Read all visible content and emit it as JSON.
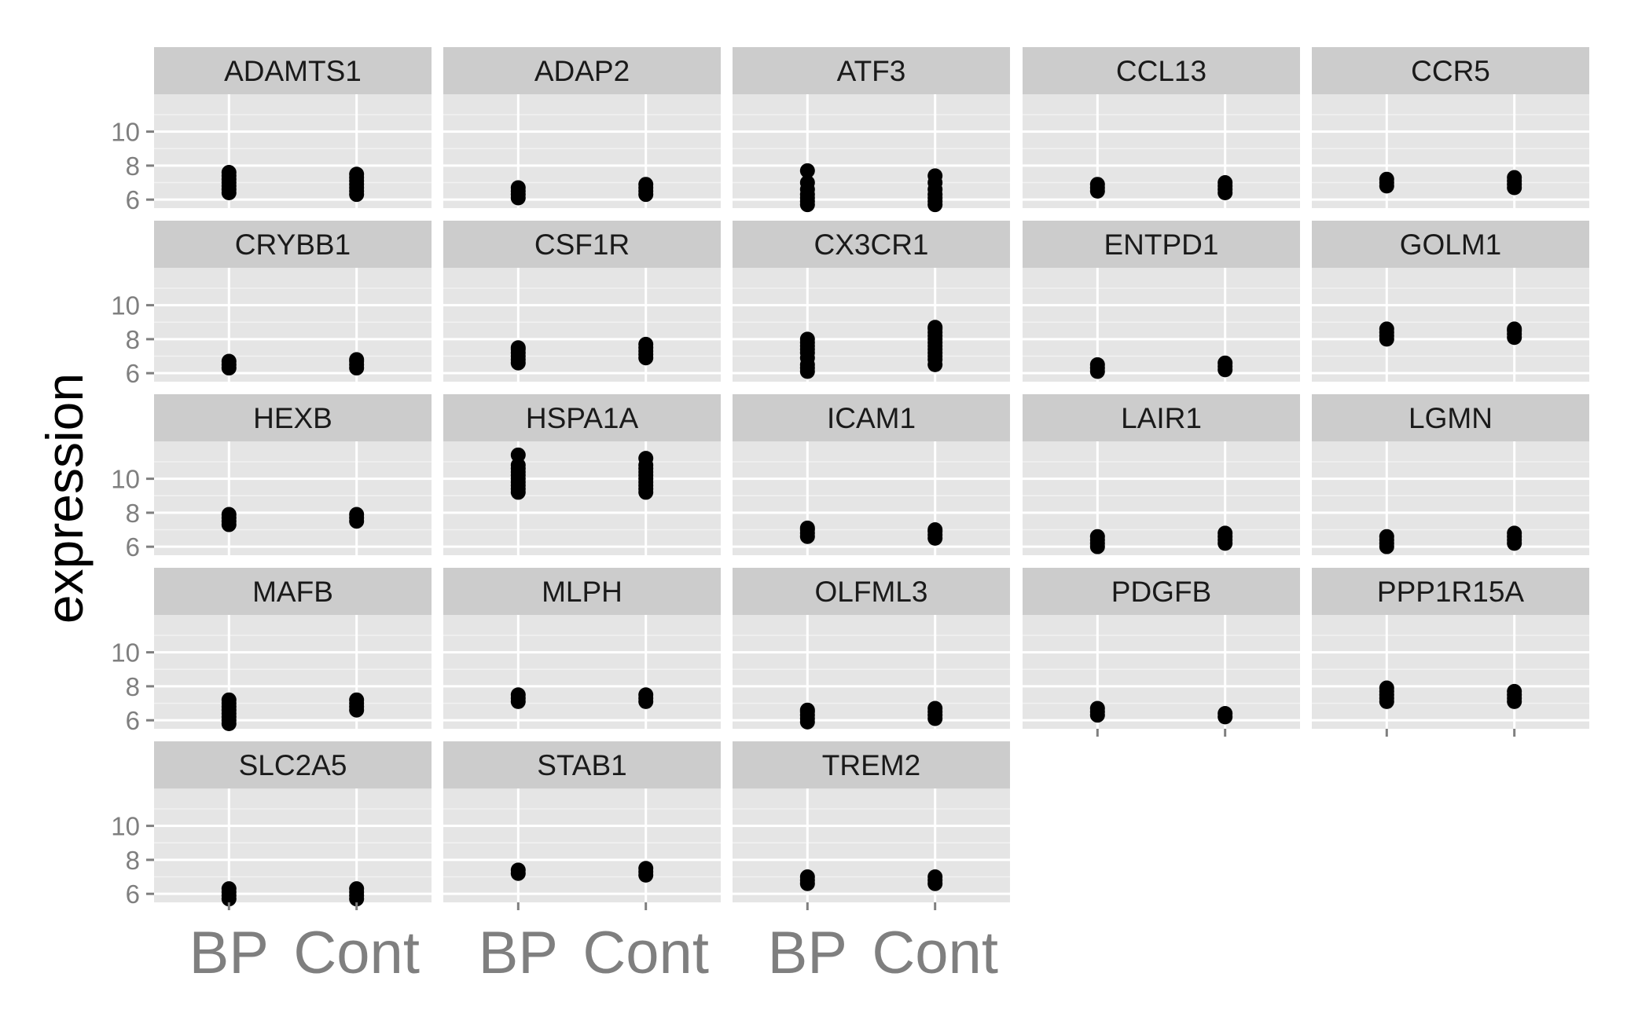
{
  "chart_data": {
    "type": "scatter",
    "layout": "faceted grid, 5 columns",
    "ylabel": "expression",
    "xlabel": "",
    "x_categories": [
      "BP",
      "Cont"
    ],
    "ylim": [
      5.5,
      12.2
    ],
    "yticks": [
      6,
      8,
      10
    ],
    "grid": true,
    "colors": {
      "panel_bg": "#e5e5e5",
      "strip_bg": "#cccccc",
      "grid_major": "#ffffff",
      "grid_minor": "#f2f2f2",
      "point": "#000000",
      "tick_text": "#7f7f7f"
    },
    "facets": [
      {
        "name": "ADAMTS1",
        "BP": [
          6.4,
          6.6,
          6.8,
          7.0,
          7.2,
          7.4,
          7.6
        ],
        "Cont": [
          6.3,
          6.5,
          6.7,
          6.9,
          7.1,
          7.3,
          7.5
        ]
      },
      {
        "name": "ADAP2",
        "BP": [
          6.1,
          6.3,
          6.5,
          6.7
        ],
        "Cont": [
          6.3,
          6.5,
          6.7,
          6.9
        ]
      },
      {
        "name": "ATF3",
        "BP": [
          5.7,
          5.9,
          6.1,
          6.3,
          6.6,
          7.0,
          7.7
        ],
        "Cont": [
          5.7,
          5.9,
          6.1,
          6.3,
          6.6,
          7.0,
          7.4
        ]
      },
      {
        "name": "CCL13",
        "BP": [
          6.5,
          6.7,
          6.9
        ],
        "Cont": [
          6.4,
          6.6,
          6.8,
          7.0
        ]
      },
      {
        "name": "CCR5",
        "BP": [
          6.8,
          7.0,
          7.2
        ],
        "Cont": [
          6.7,
          6.9,
          7.1,
          7.3
        ]
      },
      {
        "name": "CRYBB1",
        "BP": [
          6.3,
          6.5,
          6.7
        ],
        "Cont": [
          6.3,
          6.5,
          6.7,
          6.8
        ]
      },
      {
        "name": "CSF1R",
        "BP": [
          6.6,
          6.8,
          7.0,
          7.2,
          7.4,
          7.5
        ],
        "Cont": [
          6.9,
          7.1,
          7.3,
          7.5,
          7.7
        ]
      },
      {
        "name": "CX3CR1",
        "BP": [
          6.1,
          6.3,
          6.5,
          6.9,
          7.2,
          7.4,
          7.6,
          7.8,
          8.0
        ],
        "Cont": [
          6.5,
          6.8,
          7.0,
          7.2,
          7.4,
          7.6,
          7.8,
          8.0,
          8.2,
          8.4,
          8.6,
          8.7
        ]
      },
      {
        "name": "ENTPD1",
        "BP": [
          6.1,
          6.3,
          6.5
        ],
        "Cont": [
          6.2,
          6.4,
          6.6
        ]
      },
      {
        "name": "GOLM1",
        "BP": [
          8.0,
          8.2,
          8.4,
          8.6
        ],
        "Cont": [
          8.1,
          8.3,
          8.5,
          8.6
        ]
      },
      {
        "name": "HEXB",
        "BP": [
          7.3,
          7.5,
          7.7,
          7.9
        ],
        "Cont": [
          7.5,
          7.7,
          7.9
        ]
      },
      {
        "name": "HSPA1A",
        "BP": [
          9.2,
          9.4,
          9.6,
          9.8,
          10.0,
          10.2,
          10.4,
          10.6,
          10.8,
          11.4
        ],
        "Cont": [
          9.2,
          9.4,
          9.6,
          9.8,
          10.0,
          10.2,
          10.4,
          10.6,
          10.8,
          11.2
        ]
      },
      {
        "name": "ICAM1",
        "BP": [
          6.6,
          6.8,
          7.0,
          7.1
        ],
        "Cont": [
          6.5,
          6.7,
          6.9,
          7.0
        ]
      },
      {
        "name": "LAIR1",
        "BP": [
          6.0,
          6.2,
          6.4,
          6.6
        ],
        "Cont": [
          6.2,
          6.4,
          6.6,
          6.8
        ]
      },
      {
        "name": "LGMN",
        "BP": [
          6.0,
          6.2,
          6.4,
          6.6
        ],
        "Cont": [
          6.2,
          6.4,
          6.6,
          6.8
        ]
      },
      {
        "name": "MAFB",
        "BP": [
          5.8,
          6.0,
          6.2,
          6.4,
          6.6,
          6.8,
          7.0,
          7.2
        ],
        "Cont": [
          6.6,
          6.8,
          7.0,
          7.2
        ]
      },
      {
        "name": "MLPH",
        "BP": [
          7.1,
          7.3,
          7.5
        ],
        "Cont": [
          7.1,
          7.3,
          7.5
        ]
      },
      {
        "name": "OLFML3",
        "BP": [
          5.9,
          6.1,
          6.3,
          6.5,
          6.6
        ],
        "Cont": [
          6.1,
          6.3,
          6.5,
          6.7
        ]
      },
      {
        "name": "PDGFB",
        "BP": [
          6.3,
          6.5,
          6.7
        ],
        "Cont": [
          6.2,
          6.4
        ]
      },
      {
        "name": "PPP1R15A",
        "BP": [
          7.1,
          7.3,
          7.5,
          7.7,
          7.9
        ],
        "Cont": [
          7.1,
          7.3,
          7.5,
          7.7
        ]
      },
      {
        "name": "SLC2A5",
        "BP": [
          5.7,
          5.9,
          6.1,
          6.3
        ],
        "Cont": [
          5.7,
          5.9,
          6.1,
          6.3
        ]
      },
      {
        "name": "STAB1",
        "BP": [
          7.2,
          7.4
        ],
        "Cont": [
          7.1,
          7.3,
          7.5
        ]
      },
      {
        "name": "TREM2",
        "BP": [
          6.6,
          6.8,
          7.0
        ],
        "Cont": [
          6.6,
          6.8,
          7.0
        ]
      }
    ]
  }
}
